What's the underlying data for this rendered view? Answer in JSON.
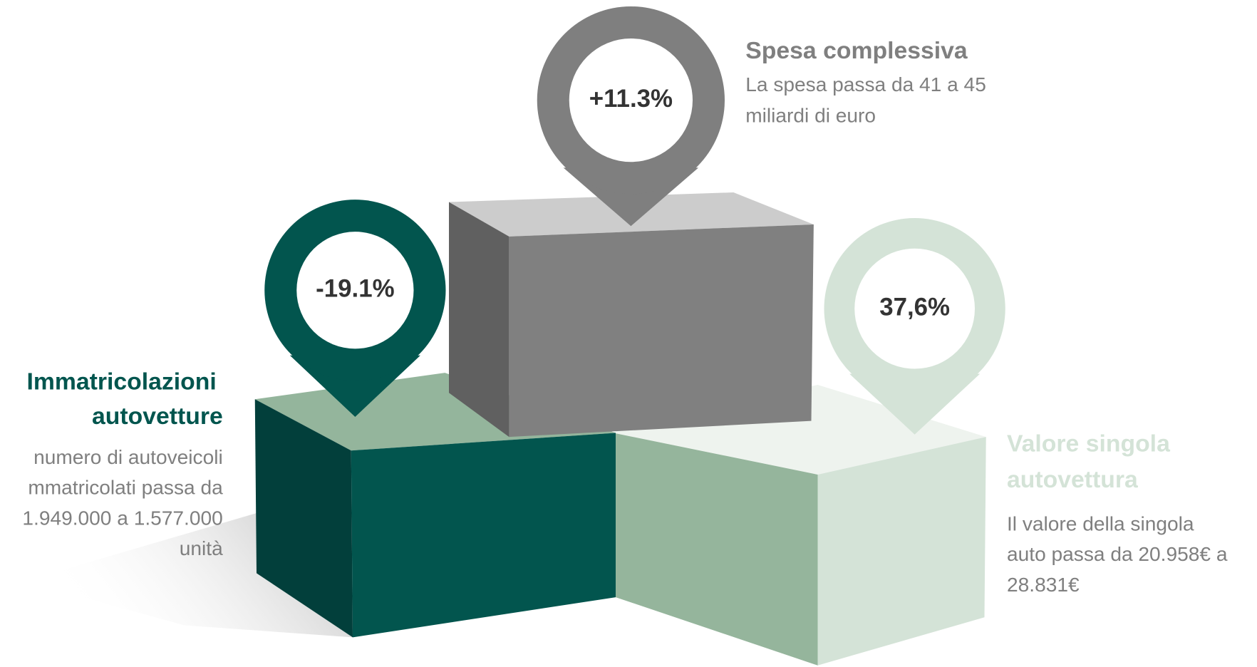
{
  "items": [
    {
      "pin_label": "+11.3%",
      "title": [
        "Spesa complessiva"
      ],
      "description": [
        "La spesa passa da 41 a 45",
        "miliardi di euro"
      ]
    },
    {
      "pin_label": "-19.1%",
      "title": [
        "Immatricolazioni",
        "autovetture"
      ],
      "description": [
        "numero di autoveicoli",
        "mmatricolati passa da",
        "1.949.000 a 1.577.000",
        "unità"
      ]
    },
    {
      "pin_label": "37,6%",
      "title": [
        "Valore singola",
        "autovettura"
      ],
      "description": [
        "Il valore della singola",
        "auto passa da 20.958€ a",
        "28.831€"
      ]
    }
  ]
}
